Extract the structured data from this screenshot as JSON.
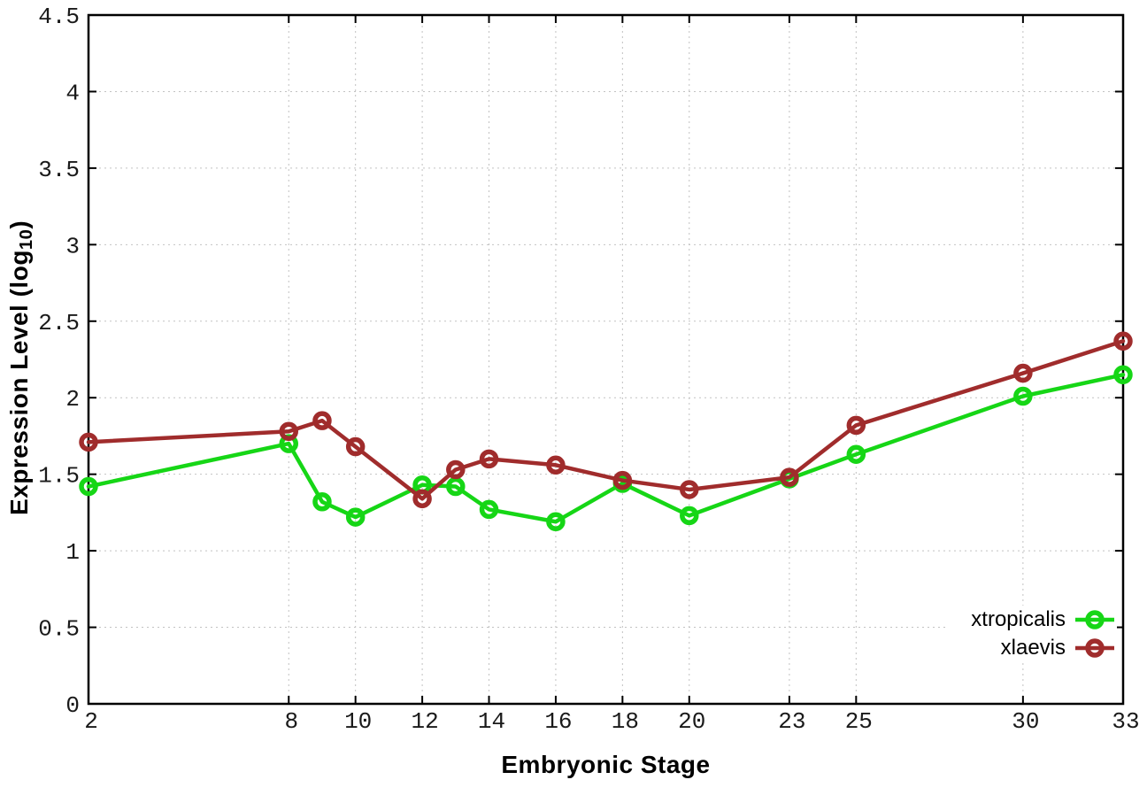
{
  "chart_data": {
    "type": "line",
    "title": "",
    "xlabel": "Embryonic Stage",
    "ylabel": "Expression Level (log10)",
    "ylabel_pre": "Expression Level (log",
    "ylabel_sub": "10",
    "ylabel_post": ")",
    "xlim": [
      2,
      33
    ],
    "ylim": [
      0,
      4.5
    ],
    "xticks": [
      2,
      8,
      10,
      12,
      14,
      16,
      18,
      20,
      23,
      25,
      30,
      33
    ],
    "yticks": [
      0,
      0.5,
      1,
      1.5,
      2,
      2.5,
      3,
      3.5,
      4,
      4.5
    ],
    "grid": true,
    "grid_style": "dotted",
    "legend_position": "inside-bottom-right",
    "background_color": "#ffffff",
    "axis_color": "#000000",
    "grid_color": "#c2c2c2",
    "marker": "open-circle",
    "categories_note": "x values are embryonic stage numbers",
    "series": [
      {
        "name": "xtropicalis",
        "color": "#16d616",
        "x": [
          2,
          8,
          9,
          10,
          12,
          13,
          14,
          16,
          18,
          20,
          23,
          25,
          30,
          33
        ],
        "y": [
          1.42,
          1.7,
          1.32,
          1.22,
          1.43,
          1.42,
          1.27,
          1.19,
          1.44,
          1.23,
          1.47,
          1.63,
          2.01,
          2.15
        ]
      },
      {
        "name": "xlaevis",
        "color": "#a02c2c",
        "x": [
          2,
          8,
          9,
          10,
          12,
          13,
          14,
          16,
          18,
          20,
          23,
          25,
          30,
          33
        ],
        "y": [
          1.71,
          1.78,
          1.85,
          1.68,
          1.34,
          1.53,
          1.6,
          1.56,
          1.46,
          1.4,
          1.48,
          1.82,
          2.16,
          2.37
        ]
      }
    ]
  }
}
